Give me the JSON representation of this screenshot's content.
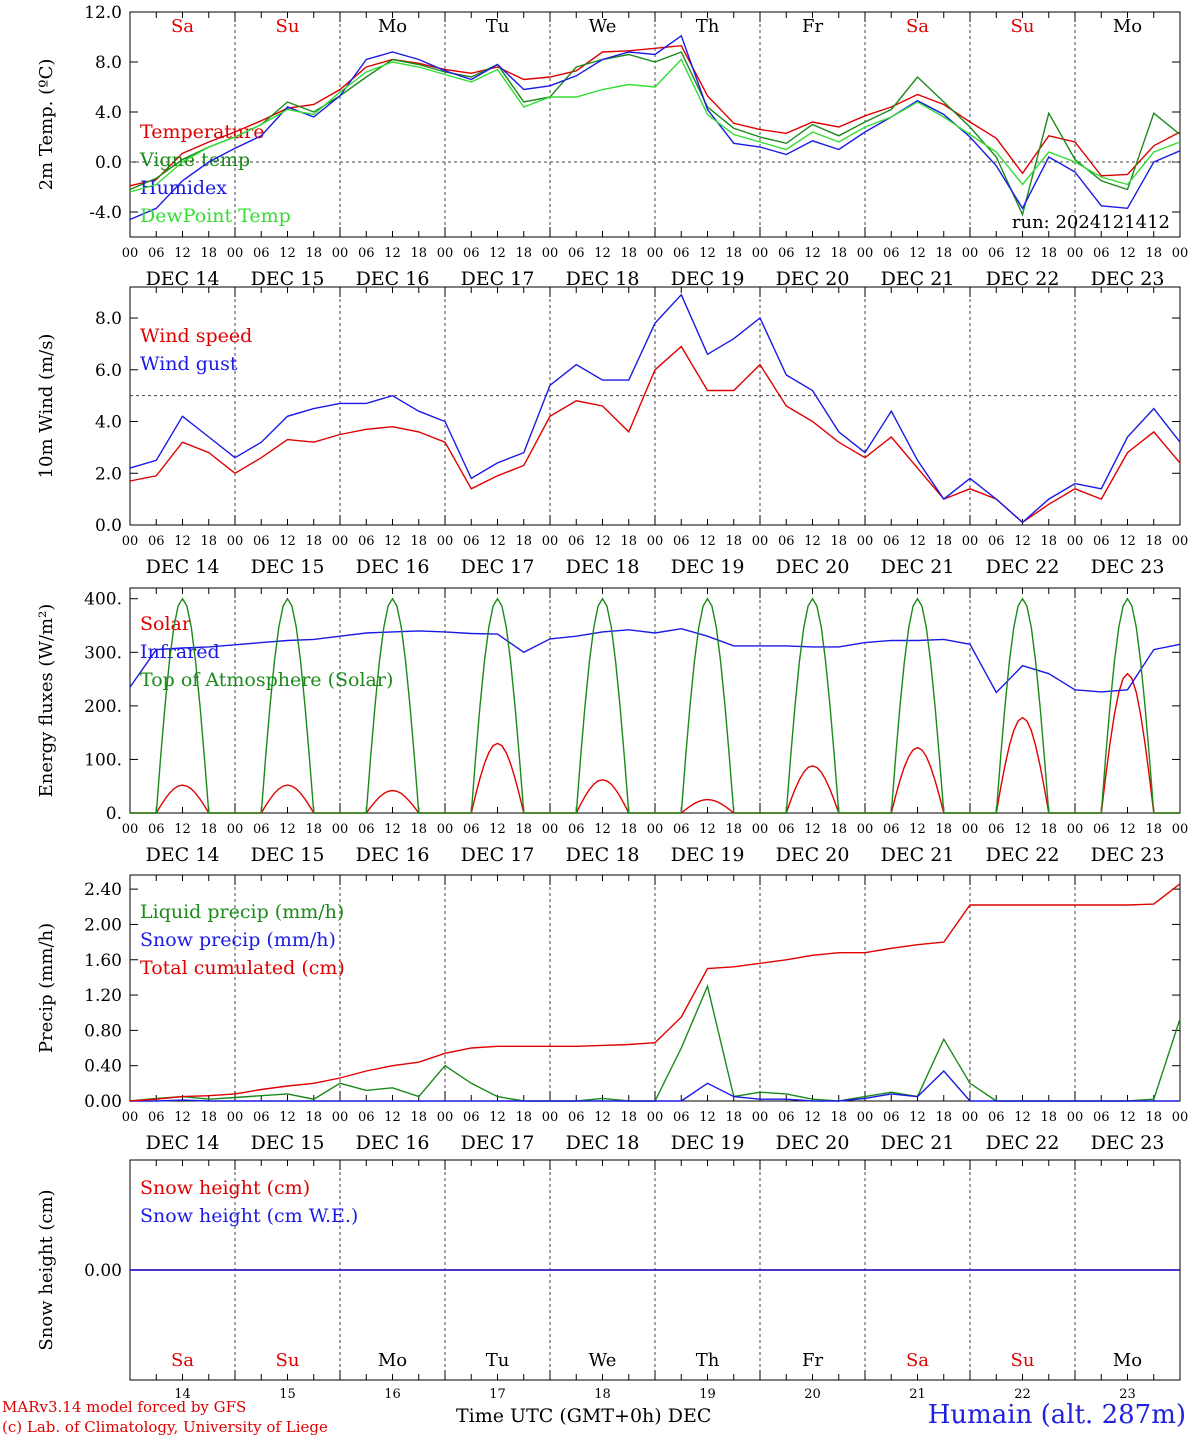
{
  "run_label": "run: 2024121412",
  "days": {
    "short": [
      "Sa",
      "Su",
      "Mo",
      "Tu",
      "We",
      "Th",
      "Fr",
      "Sa",
      "Su",
      "Mo"
    ],
    "dates": [
      "DEC 14",
      "DEC 15",
      "DEC 16",
      "DEC 17",
      "DEC 18",
      "DEC 19",
      "DEC 20",
      "DEC 21",
      "DEC 22",
      "DEC 23"
    ],
    "numbers": [
      "14",
      "15",
      "16",
      "17",
      "18",
      "19",
      "20",
      "21",
      "22",
      "23"
    ],
    "hour_ticks": [
      "00",
      "06",
      "12",
      "18"
    ]
  },
  "colors": {
    "red": "#e00000",
    "green": "#1a8a1a",
    "blue": "#1a1ae6",
    "light_green": "#33dd33",
    "weekend_day": "#e00000",
    "weekday": "#000000"
  },
  "footer": {
    "model": "MARv3.14 model forced by GFS",
    "credit": "(c) Lab. of Climatology, University of Liege",
    "xlabel": "Time UTC (GMT+0h) DEC",
    "station": "Humain (alt. 287m)"
  },
  "chart_data": [
    {
      "type": "line",
      "ylabel": "2m Temp. (ºC)",
      "ylim": [
        -6,
        12
      ],
      "yticks": [
        "12.0",
        "8.0",
        "4.0",
        "0.0",
        "-4.0"
      ],
      "ytick_values": [
        12,
        8,
        4,
        0,
        -4
      ],
      "ref_line": 0,
      "x_hours": [
        0,
        6,
        12,
        18,
        24,
        30,
        36,
        42,
        48,
        54,
        60,
        66,
        72,
        78,
        84,
        90,
        96,
        102,
        108,
        114,
        120,
        126,
        132,
        138,
        144,
        150,
        156,
        162,
        168,
        174,
        180,
        186,
        192,
        198,
        204,
        210,
        216,
        222,
        228,
        234,
        240
      ],
      "series": [
        {
          "name": "Temperature",
          "color": "#e00000",
          "values": [
            -1.9,
            -1.4,
            0.7,
            1.6,
            2.4,
            3.3,
            4.3,
            4.6,
            5.8,
            7.6,
            8.2,
            7.9,
            7.4,
            7.1,
            7.6,
            6.6,
            6.8,
            7.3,
            8.8,
            8.9,
            9.1,
            9.3,
            5.3,
            3.1,
            2.6,
            2.3,
            3.2,
            2.8,
            3.7,
            4.4,
            5.4,
            4.6,
            3.2,
            1.9,
            -0.9,
            2.1,
            1.6,
            -1.1,
            -1.0,
            1.3,
            2.4
          ]
        },
        {
          "name": "Vigne temp",
          "color": "#1a8a1a",
          "values": [
            -2.2,
            -1.3,
            0.2,
            1.2,
            2.0,
            3.0,
            4.8,
            4.0,
            5.3,
            6.8,
            8.2,
            7.8,
            7.2,
            6.8,
            7.8,
            4.8,
            5.2,
            7.6,
            8.2,
            8.6,
            8.0,
            8.8,
            4.4,
            2.7,
            2.0,
            1.5,
            3.0,
            2.1,
            3.2,
            4.2,
            6.8,
            4.8,
            2.8,
            0.4,
            -4.2,
            3.9,
            0.2,
            -1.5,
            -2.2,
            3.9,
            2.2
          ]
        },
        {
          "name": "Humidex",
          "color": "#1a1ae6",
          "values": [
            -4.6,
            -3.7,
            -1.5,
            0.0,
            1.1,
            2.1,
            4.4,
            3.6,
            5.3,
            8.2,
            8.8,
            8.2,
            7.3,
            6.6,
            7.8,
            5.8,
            6.1,
            6.9,
            8.2,
            8.8,
            8.6,
            10.1,
            4.2,
            1.5,
            1.2,
            0.6,
            1.7,
            1.0,
            2.4,
            3.6,
            4.9,
            3.8,
            2.0,
            -0.3,
            -3.7,
            0.4,
            -0.8,
            -3.5,
            -3.7,
            0.0,
            0.9
          ]
        },
        {
          "name": "DewPoint Temp",
          "color": "#33dd33",
          "values": [
            -2.4,
            -1.8,
            0.0,
            1.2,
            2.0,
            3.0,
            4.2,
            3.8,
            5.6,
            7.2,
            8.0,
            7.6,
            7.0,
            6.4,
            7.4,
            4.4,
            5.2,
            5.2,
            5.8,
            6.2,
            6.0,
            8.2,
            3.8,
            2.2,
            1.6,
            1.0,
            2.4,
            1.6,
            2.8,
            3.6,
            4.8,
            3.6,
            2.2,
            0.8,
            -1.8,
            0.8,
            0.0,
            -1.2,
            -1.8,
            0.8,
            1.6
          ]
        }
      ]
    },
    {
      "type": "line",
      "ylabel": "10m Wind (m/s)",
      "ylim": [
        0,
        9.2
      ],
      "yticks": [
        "8.0",
        "6.0",
        "4.0",
        "2.0",
        "0.0"
      ],
      "ytick_values": [
        8,
        6,
        4,
        2,
        0
      ],
      "ref_line": 5,
      "x_hours": [
        0,
        6,
        12,
        18,
        24,
        30,
        36,
        42,
        48,
        54,
        60,
        66,
        72,
        78,
        84,
        90,
        96,
        102,
        108,
        114,
        120,
        126,
        132,
        138,
        144,
        150,
        156,
        162,
        168,
        174,
        180,
        186,
        192,
        198,
        204,
        210,
        216,
        222,
        228,
        234,
        240
      ],
      "series": [
        {
          "name": "Wind speed",
          "color": "#e00000",
          "values": [
            1.7,
            1.9,
            3.2,
            2.8,
            2.0,
            2.6,
            3.3,
            3.2,
            3.5,
            3.7,
            3.8,
            3.6,
            3.2,
            1.4,
            1.9,
            2.3,
            4.2,
            4.8,
            4.6,
            3.6,
            6.0,
            6.9,
            5.2,
            5.2,
            6.2,
            4.6,
            4.0,
            3.2,
            2.6,
            3.4,
            2.2,
            1.0,
            1.4,
            1.0,
            0.1,
            0.8,
            1.4,
            1.0,
            2.8,
            3.6,
            2.4
          ]
        },
        {
          "name": "Wind gust",
          "color": "#1a1ae6",
          "values": [
            2.2,
            2.5,
            4.2,
            3.4,
            2.6,
            3.2,
            4.2,
            4.5,
            4.7,
            4.7,
            5.0,
            4.4,
            4.0,
            1.8,
            2.4,
            2.8,
            5.4,
            6.2,
            5.6,
            5.6,
            7.8,
            8.9,
            6.6,
            7.2,
            8.0,
            5.8,
            5.2,
            3.6,
            2.8,
            4.4,
            2.5,
            1.0,
            1.8,
            1.0,
            0.1,
            1.0,
            1.6,
            1.4,
            3.4,
            4.5,
            3.2
          ]
        }
      ]
    },
    {
      "type": "line",
      "ylabel": "Energy fluxes (W/m²)",
      "ylim": [
        0,
        420
      ],
      "yticks": [
        "400.",
        "300.",
        "200.",
        "100.",
        "0."
      ],
      "ytick_values": [
        400,
        300,
        200,
        100,
        0
      ],
      "series": [
        {
          "name": "Solar",
          "color": "#e00000",
          "day_peaks": [
            52,
            52,
            42,
            130,
            62,
            25,
            88,
            122,
            178,
            260
          ]
        },
        {
          "name": "Infrared",
          "color": "#1a1ae6",
          "x_hours": [
            0,
            6,
            12,
            18,
            24,
            30,
            36,
            42,
            48,
            54,
            60,
            66,
            72,
            78,
            84,
            90,
            96,
            102,
            108,
            114,
            120,
            126,
            132,
            138,
            144,
            150,
            156,
            162,
            168,
            174,
            180,
            186,
            192,
            198,
            204,
            210,
            216,
            222,
            228,
            234,
            240
          ],
          "values": [
            235,
            305,
            308,
            310,
            314,
            318,
            322,
            324,
            330,
            336,
            338,
            340,
            338,
            335,
            334,
            300,
            325,
            330,
            338,
            342,
            336,
            344,
            330,
            312,
            312,
            312,
            310,
            310,
            318,
            322,
            322,
            324,
            315,
            225,
            275,
            260,
            230,
            226,
            230,
            305,
            315
          ]
        },
        {
          "name": "Top of Atmosphere (Solar)",
          "color": "#1a8a1a",
          "day_peaks": [
            400,
            400,
            400,
            400,
            400,
            400,
            400,
            400,
            400,
            400
          ]
        }
      ]
    },
    {
      "type": "line",
      "ylabel": "Precip (mm/h)",
      "ylim": [
        0,
        2.56
      ],
      "yticks": [
        "2.40",
        "2.00",
        "1.60",
        "1.20",
        "0.80",
        "0.40",
        "0.00"
      ],
      "ytick_values": [
        2.4,
        2.0,
        1.6,
        1.2,
        0.8,
        0.4,
        0.0
      ],
      "x_hours": [
        0,
        6,
        12,
        18,
        24,
        30,
        36,
        42,
        48,
        54,
        60,
        66,
        72,
        78,
        84,
        90,
        96,
        102,
        108,
        114,
        120,
        126,
        132,
        138,
        144,
        150,
        156,
        162,
        168,
        174,
        180,
        186,
        192,
        198,
        204,
        210,
        216,
        222,
        228,
        234,
        240
      ],
      "series": [
        {
          "name": "Liquid precip (mm/h)",
          "color": "#1a8a1a",
          "values": [
            0,
            0.03,
            0.05,
            0.02,
            0.04,
            0.06,
            0.08,
            0.02,
            0.2,
            0.12,
            0.15,
            0.05,
            0.4,
            0.2,
            0.05,
            0,
            0,
            0,
            0.03,
            0,
            0,
            0.6,
            1.3,
            0.05,
            0.1,
            0.08,
            0.02,
            0,
            0.05,
            0.1,
            0.05,
            0.7,
            0.2,
            0,
            0,
            0,
            0,
            0,
            0,
            0.02,
            0.93
          ]
        },
        {
          "name": "Snow precip (mm/h)",
          "color": "#1a1ae6",
          "values": [
            0,
            0,
            0.01,
            0,
            0,
            0,
            0,
            0,
            0,
            0,
            0,
            0,
            0,
            0,
            0,
            0,
            0,
            0,
            0,
            0,
            0,
            0,
            0.2,
            0.05,
            0.02,
            0.02,
            0,
            0,
            0.03,
            0.08,
            0.05,
            0.34,
            0,
            0,
            0,
            0,
            0,
            0,
            0,
            0,
            0
          ]
        },
        {
          "name": "Total cumulated (cm)",
          "color": "#e00000",
          "values": [
            0,
            0.02,
            0.05,
            0.06,
            0.08,
            0.13,
            0.17,
            0.2,
            0.26,
            0.34,
            0.4,
            0.44,
            0.54,
            0.6,
            0.62,
            0.62,
            0.62,
            0.62,
            0.63,
            0.64,
            0.66,
            0.95,
            1.5,
            1.52,
            1.56,
            1.6,
            1.65,
            1.68,
            1.68,
            1.73,
            1.77,
            1.8,
            2.22,
            2.22,
            2.22,
            2.22,
            2.22,
            2.22,
            2.22,
            2.23,
            2.46
          ]
        }
      ]
    },
    {
      "type": "line",
      "ylabel": "Snow height (cm)",
      "ylim": [
        -1,
        1
      ],
      "yticks": [
        "0.00"
      ],
      "ytick_values": [
        0
      ],
      "series": [
        {
          "name": "Snow height (cm)",
          "color": "#e00000",
          "values": [
            0,
            0
          ]
        },
        {
          "name": "Snow height (cm W.E.)",
          "color": "#1a1ae6",
          "values": [
            0,
            0
          ]
        }
      ]
    }
  ]
}
